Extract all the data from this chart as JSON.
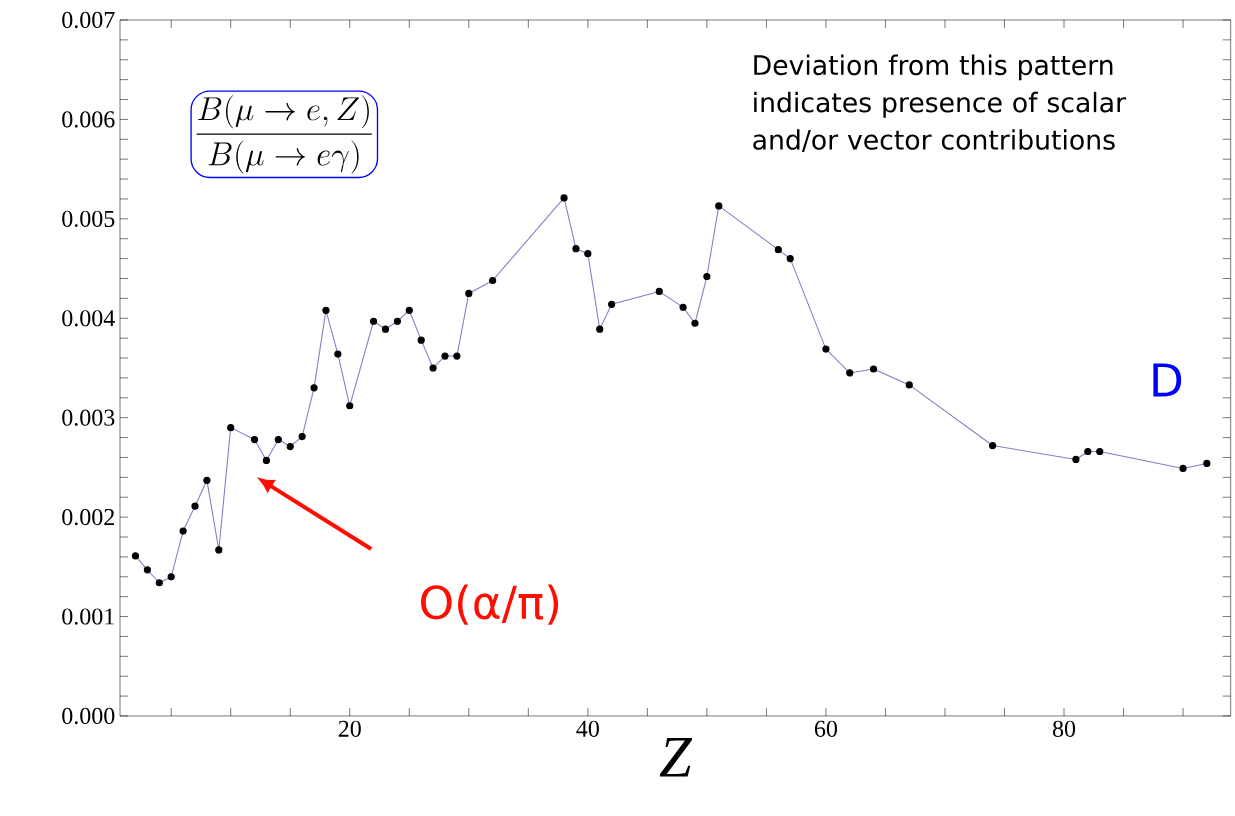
{
  "chart_data": {
    "type": "line",
    "xlabel": "Z",
    "x": [
      2,
      3,
      4,
      5,
      6,
      7,
      8,
      9,
      10,
      12,
      13,
      14,
      15,
      16,
      17,
      18,
      19,
      20,
      22,
      23,
      24,
      25,
      26,
      27,
      28,
      29,
      30,
      32,
      38,
      39,
      40,
      41,
      42,
      46,
      48,
      49,
      50,
      51,
      56,
      57,
      60,
      62,
      64,
      67,
      74,
      81,
      82,
      83,
      90,
      92
    ],
    "series": [
      {
        "color": "#7f80c4",
        "values": [
          0.00161,
          0.00147,
          0.00134,
          0.0014,
          0.00186,
          0.00211,
          0.00237,
          0.00167,
          0.0029,
          0.00278,
          0.00257,
          0.00278,
          0.00271,
          0.00281,
          0.0033,
          0.00408,
          0.00364,
          0.00312,
          0.00397,
          0.00389,
          0.00397,
          0.00408,
          0.00378,
          0.0035,
          0.00362,
          0.00362,
          0.00425,
          0.00438,
          0.00521,
          0.0047,
          0.00465,
          0.00389,
          0.00414,
          0.00427,
          0.00411,
          0.00395,
          0.00442,
          0.00513,
          0.00469,
          0.0046,
          0.00369,
          0.00345,
          0.00349,
          0.00333,
          0.00272,
          0.00258,
          0.00266,
          0.00266,
          0.00249,
          0.00254
        ]
      }
    ],
    "marker": "circle",
    "line_style": "solid",
    "xlim": [
      0.7,
      94
    ],
    "ylim": [
      0,
      0.007
    ],
    "xticks": [
      {
        "value": 5,
        "label": null
      },
      {
        "value": 10,
        "label": null
      },
      {
        "value": 15,
        "label": null
      },
      20,
      {
        "value": 25,
        "label": null
      },
      {
        "value": 30,
        "label": null
      },
      {
        "value": 35,
        "label": null
      },
      40,
      {
        "value": 45,
        "label": null
      },
      {
        "value": 50,
        "label": null
      },
      {
        "value": 55,
        "label": null
      },
      60,
      {
        "value": 65,
        "label": null
      },
      {
        "value": 70,
        "label": null
      },
      {
        "value": 75,
        "label": null
      },
      80,
      {
        "value": 85,
        "label": null
      },
      {
        "value": 90,
        "label": null
      }
    ],
    "yticks": [
      {
        "value": 0,
        "label": "0.000"
      },
      {
        "value": 0.0002,
        "label": null
      },
      {
        "value": 0.0004,
        "label": null
      },
      {
        "value": 0.0006,
        "label": null
      },
      {
        "value": 0.0008,
        "label": null
      },
      {
        "value": 0.001,
        "label": "0.001"
      },
      {
        "value": 0.0012,
        "label": null
      },
      {
        "value": 0.0014,
        "label": null
      },
      {
        "value": 0.0016,
        "label": null
      },
      {
        "value": 0.0018,
        "label": null
      },
      {
        "value": 0.002,
        "label": "0.002"
      },
      {
        "value": 0.0022,
        "label": null
      },
      {
        "value": 0.0024,
        "label": null
      },
      {
        "value": 0.0026,
        "label": null
      },
      {
        "value": 0.0028,
        "label": null
      },
      {
        "value": 0.003,
        "label": "0.003"
      },
      {
        "value": 0.0032,
        "label": null
      },
      {
        "value": 0.0034,
        "label": null
      },
      {
        "value": 0.0036,
        "label": null
      },
      {
        "value": 0.0038,
        "label": null
      },
      {
        "value": 0.004,
        "label": "0.004"
      },
      {
        "value": 0.0042,
        "label": null
      },
      {
        "value": 0.0044,
        "label": null
      },
      {
        "value": 0.0046,
        "label": null
      },
      {
        "value": 0.0048,
        "label": null
      },
      {
        "value": 0.005,
        "label": "0.005"
      },
      {
        "value": 0.0052,
        "label": null
      },
      {
        "value": 0.0054,
        "label": null
      },
      {
        "value": 0.0056,
        "label": null
      },
      {
        "value": 0.0058,
        "label": null
      },
      {
        "value": 0.006,
        "label": "0.006"
      },
      {
        "value": 0.0062,
        "label": null
      },
      {
        "value": 0.0064,
        "label": null
      },
      {
        "value": 0.0066,
        "label": null
      },
      {
        "value": 0.0068,
        "label": null
      },
      {
        "value": 0.007,
        "label": "0.007"
      }
    ],
    "annotations": [
      "\\frac{B(\\mu\\rightarrow e,Z)}{B(\\mu\\rightarrow e\\gamma)}",
      "Deviation from this pattern indicates presence of scalar and/or vector contributions",
      "O(α/π)",
      "D"
    ]
  }
}
